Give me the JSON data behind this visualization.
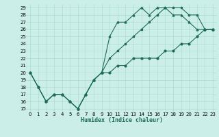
{
  "title": "",
  "xlabel": "Humidex (Indice chaleur)",
  "background_color": "#cceee8",
  "grid_color": "#aaddcc",
  "line_color": "#1e6b5a",
  "xlim": [
    -0.5,
    23.5
  ],
  "ylim": [
    14.5,
    29.5
  ],
  "xticks": [
    0,
    1,
    2,
    3,
    4,
    5,
    6,
    7,
    8,
    9,
    10,
    11,
    12,
    13,
    14,
    15,
    16,
    17,
    18,
    19,
    20,
    21,
    22,
    23
  ],
  "yticks": [
    15,
    16,
    17,
    18,
    19,
    20,
    21,
    22,
    23,
    24,
    25,
    26,
    27,
    28,
    29
  ],
  "line1_x": [
    0,
    1,
    2,
    3,
    4,
    5,
    6,
    7,
    8,
    9,
    10,
    11,
    12,
    13,
    14,
    15,
    16,
    17,
    18,
    19,
    20,
    21,
    22,
    23
  ],
  "line1_y": [
    20,
    18,
    16,
    17,
    17,
    16,
    15,
    17,
    19,
    20,
    20,
    21,
    21,
    22,
    22,
    22,
    22,
    23,
    23,
    24,
    24,
    25,
    26,
    26
  ],
  "line2_x": [
    0,
    1,
    2,
    3,
    4,
    5,
    6,
    7,
    8,
    9,
    10,
    11,
    12,
    13,
    14,
    15,
    16,
    17,
    18,
    19,
    20,
    21,
    22,
    23
  ],
  "line2_y": [
    20,
    18,
    16,
    17,
    17,
    16,
    15,
    17,
    19,
    20,
    25,
    27,
    27,
    28,
    29,
    28,
    29,
    29,
    28,
    28,
    27,
    26,
    26,
    26
  ],
  "line3_x": [
    0,
    1,
    2,
    3,
    4,
    5,
    6,
    7,
    8,
    9,
    10,
    11,
    12,
    13,
    14,
    15,
    16,
    17,
    18,
    19,
    20,
    21,
    22,
    23
  ],
  "line3_y": [
    20,
    18,
    16,
    17,
    17,
    16,
    15,
    17,
    19,
    20,
    22,
    23,
    24,
    25,
    26,
    27,
    28,
    29,
    29,
    29,
    28,
    28,
    26,
    26
  ],
  "marker_size": 2,
  "line_width": 0.8,
  "tick_fontsize": 5,
  "xlabel_fontsize": 6
}
